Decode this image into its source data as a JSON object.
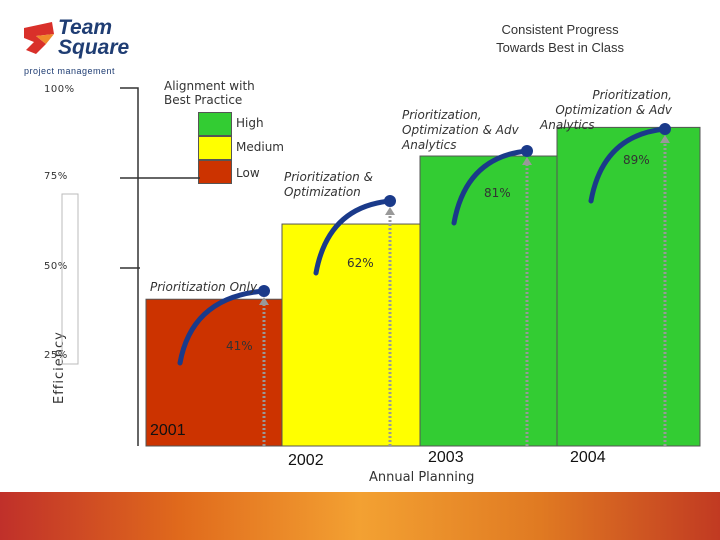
{
  "logo": {
    "line1": "Team",
    "line2": "Square",
    "tagline": "project management"
  },
  "title": {
    "line1": "Consistent Progress",
    "line2": "Towards Best in Class"
  },
  "legend": {
    "title_line1": "Alignment with",
    "title_line2": "Best Practice",
    "items": [
      {
        "label": "High",
        "color": "#33cc33"
      },
      {
        "label": "Medium",
        "color": "#ffff00"
      },
      {
        "label": "Low",
        "color": "#cc3300"
      }
    ]
  },
  "y_ticks": [
    "100%",
    "75%",
    "50%",
    "25%"
  ],
  "y_axis_label": "Efficiency",
  "x_subtitle": "Annual Planning",
  "chart_data": {
    "type": "bar",
    "title": "Consistent Progress Towards Best in Class",
    "ylabel": "Efficiency",
    "xlabel": "Annual Planning",
    "ylim": [
      0,
      100
    ],
    "categories": [
      "2001",
      "2002",
      "2003",
      "2004"
    ],
    "values": [
      41,
      62,
      81,
      89
    ],
    "value_labels": [
      "41%",
      "62%",
      "81%",
      "89%"
    ],
    "bar_labels": [
      [
        "Prioritization Only"
      ],
      [
        "Prioritization &",
        "Optimization"
      ],
      [
        "Prioritization,",
        "Optimization & Adv",
        "Analytics"
      ],
      [
        "Prioritization,",
        "Optimization & Adv",
        "Analytics"
      ]
    ],
    "bar_colors": [
      "#cc3300",
      "#ffff00",
      "#33cc33",
      "#33cc33"
    ],
    "legend": [
      "High",
      "Medium",
      "Low"
    ]
  }
}
